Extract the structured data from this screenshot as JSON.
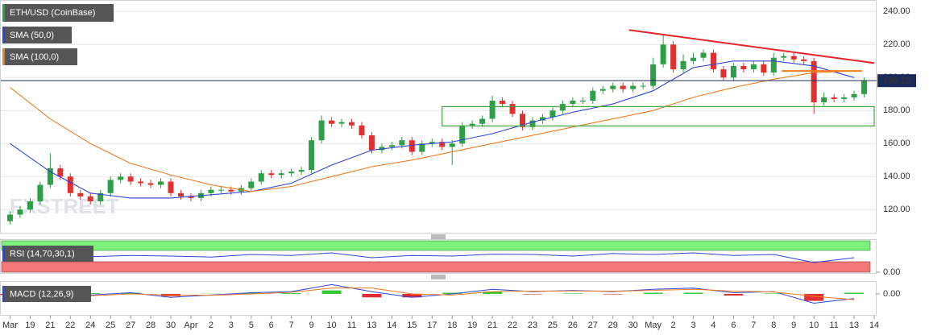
{
  "chart_data": [
    {
      "type": "candlestick",
      "title": "ETH/USD (CoinBase)",
      "watermark": "FXSTREET",
      "up_color": "#2e9e48",
      "down_color": "#e0302f",
      "x": [
        0,
        0.5,
        1,
        1.5,
        2,
        2.5,
        3,
        3.5,
        4,
        4.5,
        5,
        5.5,
        6,
        6.5,
        7,
        7.5,
        8,
        8.5,
        9,
        9.5,
        10,
        10.5,
        11,
        11.5,
        12,
        12.5,
        13,
        13.5,
        14,
        14.5,
        15,
        15.5,
        16,
        16.5,
        17,
        17.5,
        18,
        18.5,
        19,
        19.5,
        20,
        20.5,
        21,
        21.5,
        22,
        22.5,
        23,
        23.5,
        24,
        24.5,
        25,
        25.5,
        26,
        26.5,
        27,
        27.5,
        28,
        28.5,
        29,
        29.5,
        30,
        30.5,
        31,
        31.5,
        32,
        32.5,
        33,
        33.5,
        34,
        34.5,
        35,
        35.5,
        36,
        36.5,
        37,
        37.5,
        38,
        38.5,
        39,
        39.5,
        40,
        40.5,
        41,
        41.5,
        42,
        42.5
      ],
      "open": [
        113,
        117,
        120,
        125,
        135,
        145,
        140,
        130,
        128,
        125,
        130,
        138,
        140,
        137,
        136,
        135,
        137,
        130,
        128,
        127,
        130,
        132,
        132,
        131,
        133,
        137,
        142,
        141,
        142,
        143,
        144,
        162,
        174,
        172,
        173,
        171,
        165,
        156,
        158,
        159,
        162,
        155,
        160,
        161,
        158,
        160,
        171,
        172,
        175,
        186,
        184,
        178,
        170,
        174,
        176,
        180,
        184,
        186,
        186,
        192,
        193,
        195,
        193,
        195,
        195,
        208,
        220,
        205,
        210,
        212,
        215,
        205,
        200,
        207,
        205,
        208,
        203,
        212,
        213,
        211,
        210,
        185,
        188,
        187,
        188,
        190
      ],
      "high": [
        119,
        122,
        127,
        137,
        154,
        147,
        142,
        132,
        130,
        132,
        140,
        142,
        142,
        139,
        138,
        139,
        139,
        132,
        130,
        132,
        134,
        134,
        134,
        135,
        139,
        144,
        144,
        144,
        145,
        146,
        164,
        177,
        176,
        175,
        175,
        173,
        167,
        160,
        161,
        164,
        164,
        162,
        163,
        163,
        162,
        173,
        174,
        177,
        189,
        188,
        186,
        180,
        176,
        178,
        182,
        186,
        188,
        188,
        194,
        195,
        197,
        197,
        197,
        197,
        212,
        226,
        222,
        214,
        215,
        217,
        217,
        207,
        209,
        209,
        210,
        210,
        215,
        215,
        215,
        213,
        212,
        191,
        190,
        190,
        192,
        200
      ],
      "low": [
        111,
        115,
        118,
        123,
        133,
        138,
        128,
        126,
        123,
        123,
        128,
        136,
        135,
        134,
        133,
        133,
        128,
        126,
        125,
        125,
        128,
        130,
        129,
        129,
        131,
        135,
        139,
        139,
        140,
        141,
        142,
        160,
        170,
        170,
        169,
        163,
        154,
        154,
        156,
        157,
        153,
        153,
        158,
        156,
        147,
        158,
        169,
        170,
        173,
        182,
        176,
        168,
        168,
        172,
        174,
        178,
        182,
        184,
        184,
        190,
        191,
        191,
        191,
        193,
        193,
        206,
        203,
        203,
        208,
        210,
        203,
        198,
        198,
        203,
        203,
        201,
        201,
        210,
        209,
        208,
        178,
        183,
        185,
        185,
        186,
        188
      ],
      "close": [
        117,
        120,
        125,
        135,
        145,
        140,
        130,
        128,
        125,
        130,
        138,
        140,
        137,
        136,
        135,
        137,
        130,
        128,
        127,
        130,
        132,
        132,
        131,
        133,
        137,
        142,
        141,
        142,
        143,
        144,
        162,
        174,
        172,
        173,
        171,
        165,
        156,
        158,
        159,
        162,
        155,
        160,
        161,
        158,
        160,
        171,
        172,
        175,
        186,
        184,
        178,
        170,
        174,
        176,
        180,
        184,
        186,
        186,
        192,
        193,
        195,
        193,
        195,
        195,
        208,
        220,
        205,
        210,
        212,
        215,
        205,
        200,
        207,
        205,
        208,
        203,
        212,
        213,
        211,
        210,
        185,
        188,
        187,
        188,
        190,
        198
      ],
      "series": [
        {
          "name": "SMA (50,0)",
          "color": "#2f45d8",
          "x": [
            0,
            2,
            4,
            6,
            8,
            10,
            12,
            14,
            16,
            18,
            20,
            22,
            24,
            26,
            28,
            30,
            32,
            34,
            36,
            38,
            40,
            42
          ],
          "values": [
            160,
            143,
            130,
            127,
            127,
            129,
            131,
            136,
            147,
            156,
            159,
            161,
            166,
            173,
            179,
            184,
            192,
            206,
            210,
            210,
            207,
            200
          ]
        },
        {
          "name": "SMA (100,0)",
          "color": "#ef7d22",
          "x": [
            0,
            2,
            4,
            6,
            8,
            10,
            12,
            14,
            16,
            18,
            20,
            22,
            24,
            26,
            28,
            30,
            32,
            34,
            36,
            38,
            40,
            42
          ],
          "values": [
            194,
            175,
            160,
            148,
            141,
            135,
            131,
            134,
            140,
            146,
            150,
            155,
            160,
            165,
            170,
            175,
            180,
            188,
            194,
            199,
            203,
            204
          ]
        }
      ],
      "last_price": 198.12,
      "last_price_color": "#1b2a5c",
      "annotations": [
        {
          "kind": "line",
          "color": "#e8262a",
          "x": [
            30.8,
            43
          ],
          "y": [
            228.8,
            208.8
          ]
        },
        {
          "kind": "box",
          "color": "#3fa53f",
          "x": [
            21.5,
            43
          ],
          "y": [
            170.7,
            182.4
          ]
        },
        {
          "kind": "line",
          "color": "#ef7d22",
          "x": [
            38.4,
            42.4
          ],
          "y": [
            204,
            204
          ]
        }
      ],
      "xlim": [
        -0.5,
        43
      ],
      "ylim": [
        106,
        246
      ],
      "yticks": [
        {
          "value": 120,
          "label": "120.00"
        },
        {
          "value": 140,
          "label": "140.00"
        },
        {
          "value": 160,
          "label": "160.00"
        },
        {
          "value": 180,
          "label": "180.00"
        },
        {
          "value": 200,
          "label": "200.00"
        },
        {
          "value": 220,
          "label": "220.00"
        },
        {
          "value": 240,
          "label": "240.00"
        }
      ]
    },
    {
      "type": "rsi",
      "title": "RSI (14,70,30,1)",
      "color": "#2f45d8",
      "x": [
        0,
        2,
        4,
        6,
        8,
        10,
        12,
        14,
        16,
        18,
        20,
        22,
        24,
        26,
        28,
        30,
        32,
        34,
        36,
        38,
        40,
        42
      ],
      "values": [
        50,
        55,
        48,
        52,
        50,
        47,
        55,
        52,
        60,
        45,
        52,
        50,
        56,
        55,
        50,
        58,
        55,
        60,
        52,
        55,
        30,
        45
      ],
      "xlim": [
        -0.5,
        43
      ],
      "ylim": [
        0,
        100
      ],
      "yticks": [
        {
          "value": 0,
          "label": "0.00"
        }
      ]
    },
    {
      "type": "macd",
      "title": "MACD (12,26,9)",
      "up_color": "#32c832",
      "down_color": "#e0302f",
      "x": [
        0,
        2,
        4,
        6,
        8,
        10,
        12,
        14,
        16,
        18,
        20,
        22,
        24,
        26,
        28,
        30,
        32,
        34,
        36,
        38,
        40,
        42
      ],
      "series": [
        {
          "color": "#2f45d8",
          "values": [
            -2,
            -1,
            -0.5,
            0.5,
            -1.5,
            -0.5,
            0.5,
            1,
            4,
            1,
            -1.5,
            0,
            2,
            1,
            1.5,
            1,
            2,
            2.5,
            0.5,
            1,
            -4,
            -2
          ]
        },
        {
          "color": "#ef7d22",
          "values": [
            -1.5,
            -1.5,
            -0.8,
            0,
            -0.5,
            -0.6,
            0,
            0.7,
            2.5,
            2.5,
            0,
            -0.5,
            1,
            1.2,
            1.3,
            1.2,
            1.5,
            2,
            1.2,
            0.8,
            -1,
            -2.5
          ]
        }
      ],
      "histogram": [
        -0.5,
        0.5,
        0.3,
        0.5,
        -1,
        0.1,
        0.5,
        0.3,
        1.5,
        -1.5,
        -1.5,
        0.5,
        1,
        -0.2,
        0.2,
        -0.2,
        0.5,
        0.5,
        -0.7,
        0.2,
        -3,
        0.5
      ],
      "xlim": [
        -0.5,
        43
      ],
      "ylim": [
        -8,
        4.5
      ],
      "yticks": [
        {
          "value": 0,
          "label": "0.00"
        }
      ],
      "xticks": [
        {
          "value": 0,
          "label": "Mar"
        },
        {
          "value": 1,
          "label": "19"
        },
        {
          "value": 2,
          "label": "21"
        },
        {
          "value": 3,
          "label": "22"
        },
        {
          "value": 4,
          "label": "24"
        },
        {
          "value": 5,
          "label": "25"
        },
        {
          "value": 6,
          "label": "27"
        },
        {
          "value": 7,
          "label": "28"
        },
        {
          "value": 8,
          "label": "30"
        },
        {
          "value": 9,
          "label": "Apr"
        },
        {
          "value": 10,
          "label": "2"
        },
        {
          "value": 11,
          "label": "3"
        },
        {
          "value": 12,
          "label": "5"
        },
        {
          "value": 13,
          "label": "6"
        },
        {
          "value": 14,
          "label": "7"
        },
        {
          "value": 15,
          "label": "9"
        },
        {
          "value": 16,
          "label": "10"
        },
        {
          "value": 17,
          "label": "11"
        },
        {
          "value": 18,
          "label": "13"
        },
        {
          "value": 19,
          "label": "14"
        },
        {
          "value": 20,
          "label": "15"
        },
        {
          "value": 21,
          "label": "17"
        },
        {
          "value": 22,
          "label": "18"
        },
        {
          "value": 23,
          "label": "19"
        },
        {
          "value": 24,
          "label": "21"
        },
        {
          "value": 25,
          "label": "22"
        },
        {
          "value": 26,
          "label": "23"
        },
        {
          "value": 27,
          "label": "25"
        },
        {
          "value": 28,
          "label": "26"
        },
        {
          "value": 29,
          "label": "27"
        },
        {
          "value": 30,
          "label": "29"
        },
        {
          "value": 31,
          "label": "30"
        },
        {
          "value": 32,
          "label": "May"
        },
        {
          "value": 33,
          "label": "2"
        },
        {
          "value": 34,
          "label": "3"
        },
        {
          "value": 35,
          "label": "4"
        },
        {
          "value": 36,
          "label": "6"
        },
        {
          "value": 37,
          "label": "7"
        },
        {
          "value": 38,
          "label": "8"
        },
        {
          "value": 39,
          "label": "9"
        },
        {
          "value": 40,
          "label": "10"
        },
        {
          "value": 41,
          "label": "11"
        },
        {
          "value": 42,
          "label": "13"
        },
        {
          "value": 43,
          "label": "14"
        }
      ]
    }
  ]
}
